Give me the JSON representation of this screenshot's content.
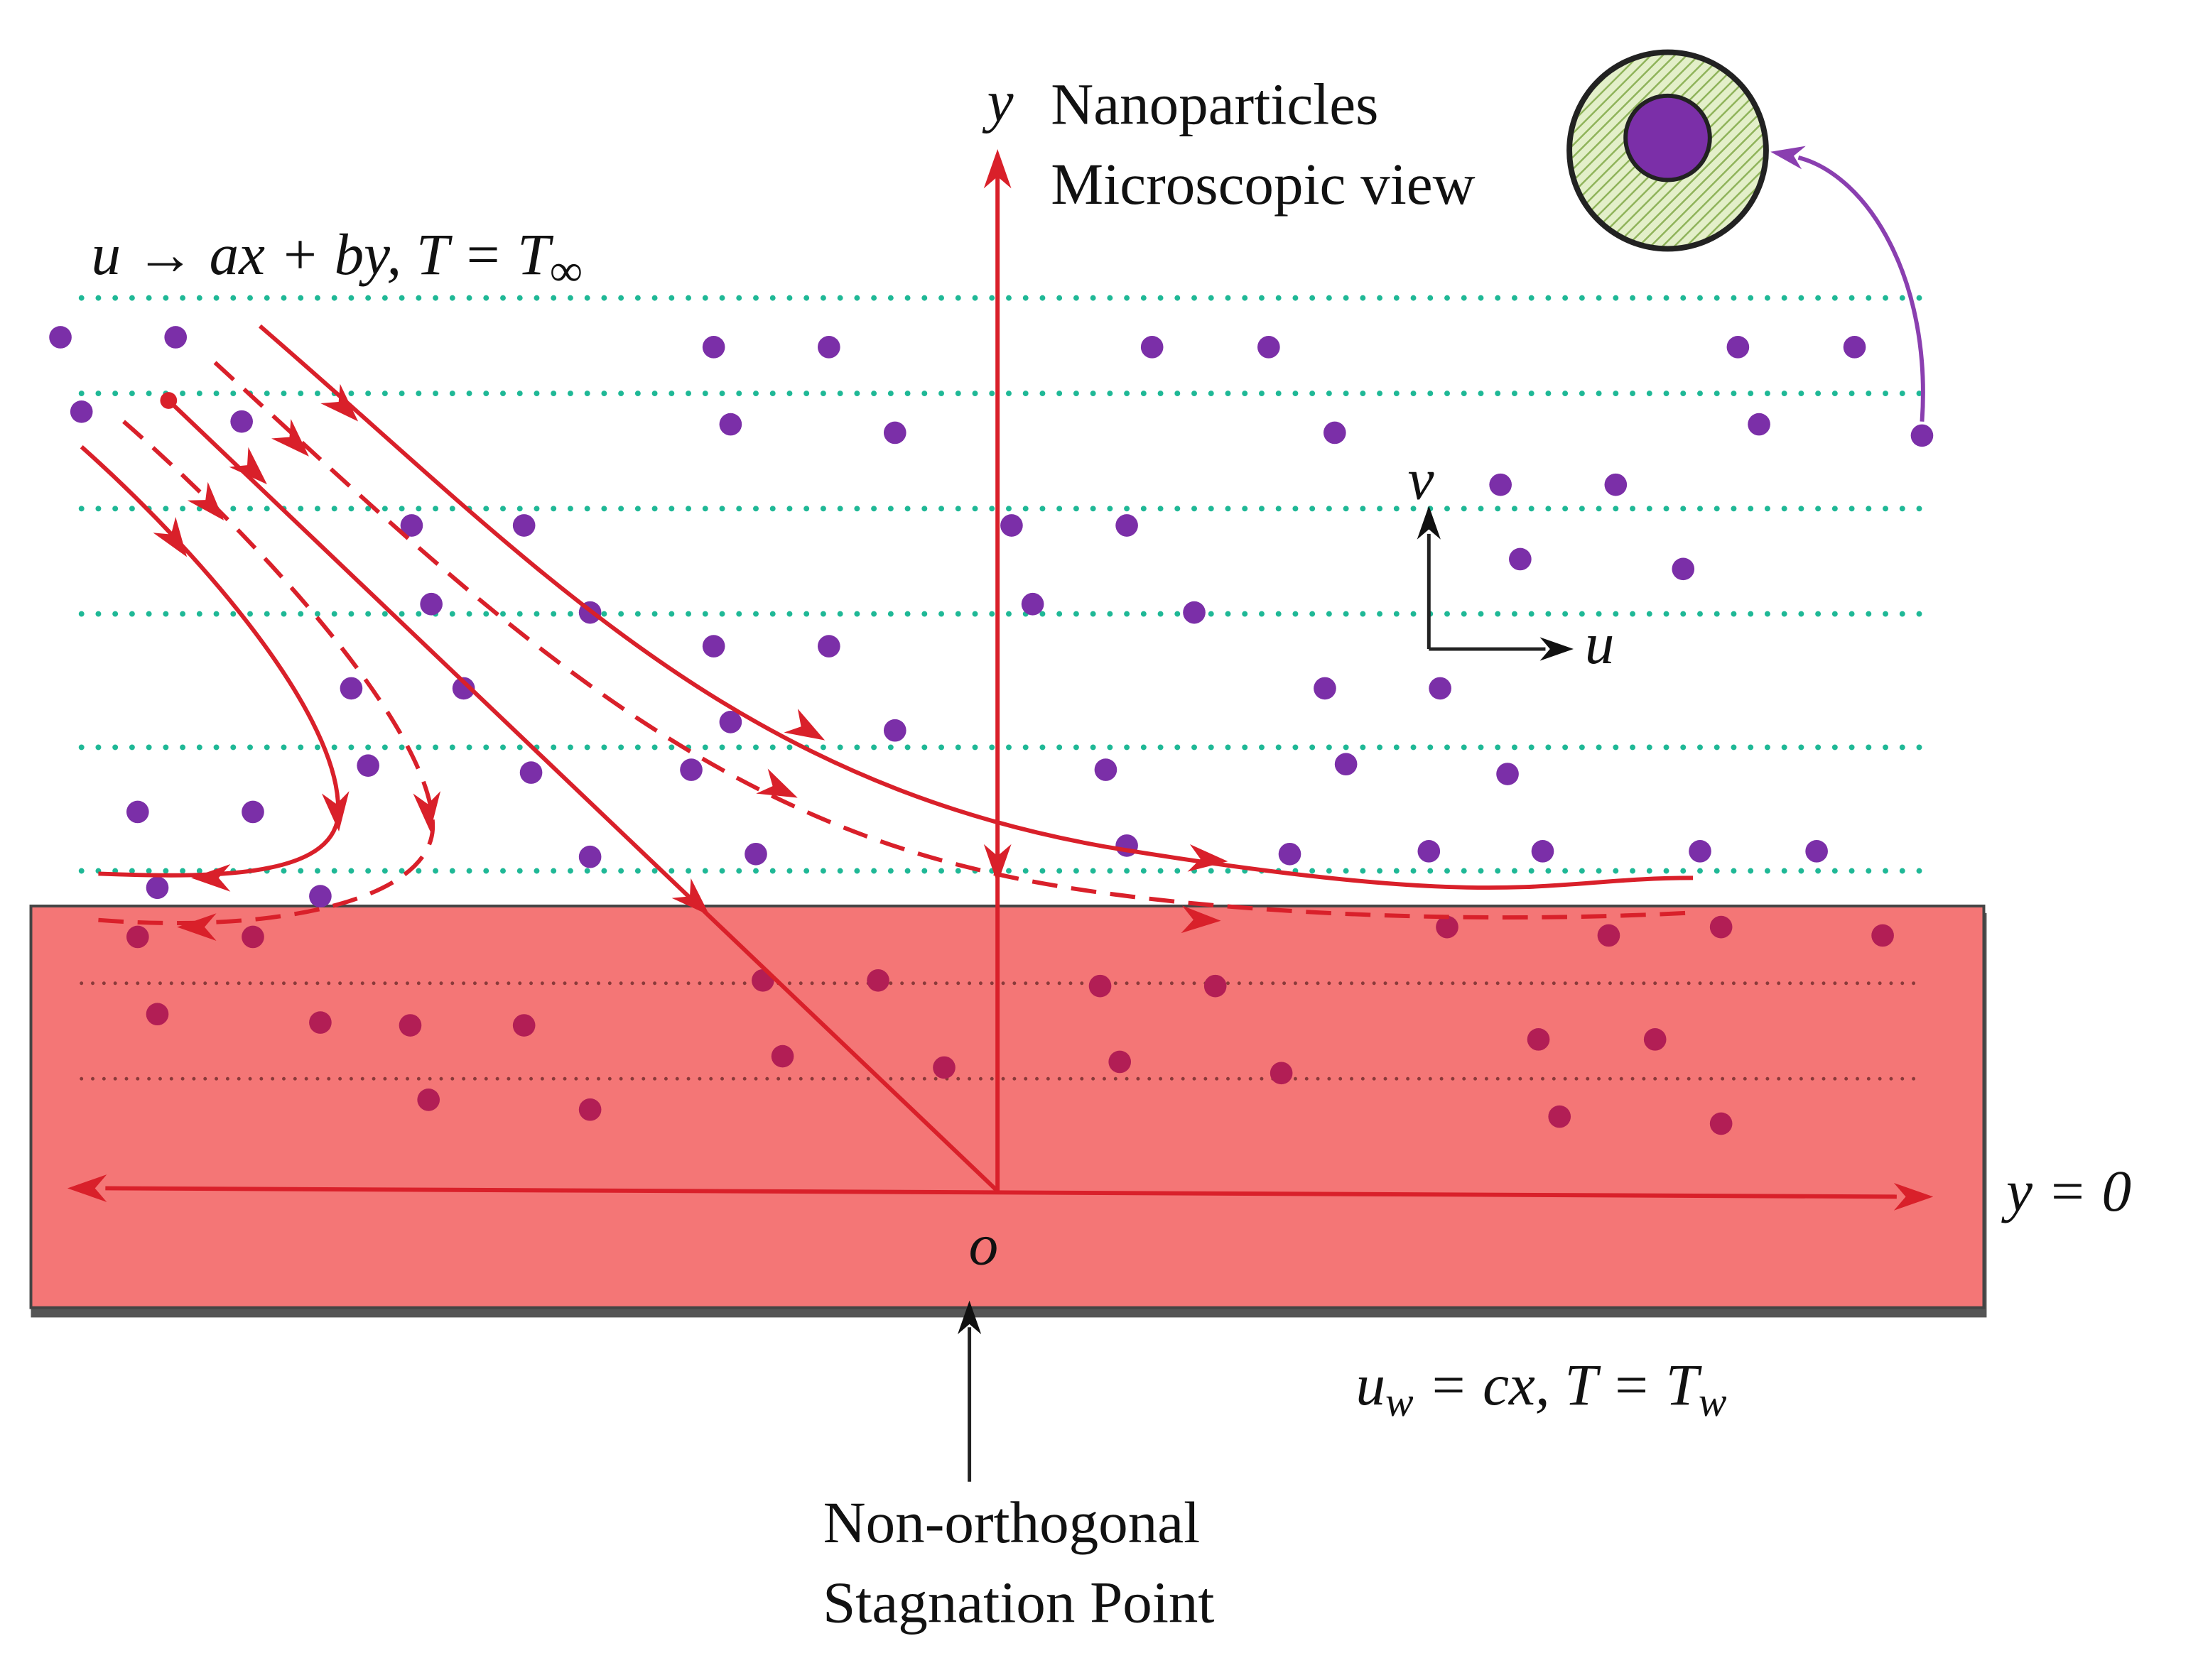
{
  "axis_labels": {
    "y": "y",
    "v": "v",
    "u": "u",
    "origin": "o",
    "wall": "y = 0"
  },
  "microscopic_label": [
    "Nanoparticles",
    "Microscopic view"
  ],
  "freestream_condition": [
    "u → ax + by, T = T",
    "∞"
  ],
  "wall_condition": [
    "u",
    "w",
    " = cx, T = T",
    "w"
  ],
  "stagnation_label": [
    "Non-orthogonal",
    "Stagnation Point"
  ]
}
